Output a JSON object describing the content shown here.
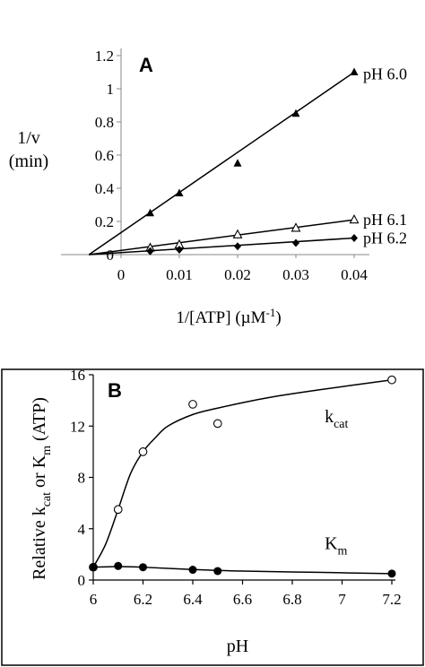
{
  "chart_data": [
    {
      "panel_label": "A",
      "type": "line",
      "xlabel_main": "1/[ATP] (µM",
      "xlabel_sup": "-1",
      "xlabel_end": ")",
      "ylabel_line1": "1/v",
      "ylabel_line2": "(min)",
      "xlim": [
        -0.0075,
        0.04
      ],
      "ylim": [
        0,
        1.2
      ],
      "xticks": [
        0,
        0.01,
        0.02,
        0.03,
        0.04
      ],
      "xtick_labels": [
        "0",
        "0.01",
        "0.02",
        "0.03",
        "0.04"
      ],
      "yticks": [
        0,
        0.2,
        0.4,
        0.6,
        0.8,
        1,
        1.2
      ],
      "ytick_labels": [
        "0",
        "0.2",
        "0.4",
        "0.6",
        "0.8",
        "1",
        "1.2"
      ],
      "series": [
        {
          "name": "pH 6.0",
          "marker": "filled-triangle",
          "points": [
            [
              0.005,
              0.25
            ],
            [
              0.01,
              0.37
            ],
            [
              0.02,
              0.55
            ],
            [
              0.03,
              0.85
            ],
            [
              0.04,
              1.1
            ]
          ],
          "fit": [
            [
              -0.0055,
              0
            ],
            [
              0.04,
              1.1
            ]
          ]
        },
        {
          "name": "pH 6.1",
          "marker": "open-triangle",
          "points": [
            [
              0.005,
              0.04
            ],
            [
              0.01,
              0.06
            ],
            [
              0.02,
              0.12
            ],
            [
              0.03,
              0.16
            ],
            [
              0.04,
              0.21
            ]
          ],
          "fit": [
            [
              -0.0055,
              0
            ],
            [
              0.04,
              0.21
            ]
          ]
        },
        {
          "name": "pH 6.2",
          "marker": "filled-diamond",
          "points": [
            [
              0.005,
              0.02
            ],
            [
              0.01,
              0.03
            ],
            [
              0.02,
              0.05
            ],
            [
              0.03,
              0.07
            ],
            [
              0.04,
              0.1
            ]
          ],
          "fit": [
            [
              -0.0055,
              0
            ],
            [
              0.04,
              0.1
            ]
          ]
        }
      ]
    },
    {
      "panel_label": "B",
      "type": "scatter",
      "xlabel": "pH",
      "ylabel": {
        "pre": "Relative k",
        "sub1": "cat",
        "mid": " or K",
        "sub2": "m",
        "post": " (ATP)"
      },
      "xlim": [
        6,
        7.2
      ],
      "ylim": [
        0,
        16
      ],
      "xticks": [
        6,
        6.2,
        6.4,
        6.6,
        6.8,
        7,
        7.2
      ],
      "xtick_labels": [
        "6",
        "6.2",
        "6.4",
        "6.6",
        "6.8",
        "7",
        "7.2"
      ],
      "yticks": [
        0,
        4,
        8,
        12,
        16
      ],
      "ytick_labels": [
        "0",
        "4",
        "8",
        "12",
        "16"
      ],
      "series": [
        {
          "name": "k",
          "name_sub": "cat",
          "marker": "open-circle",
          "points": [
            [
              6,
              1
            ],
            [
              6.1,
              5.5
            ],
            [
              6.2,
              10
            ],
            [
              6.4,
              13.7
            ],
            [
              6.5,
              12.2
            ],
            [
              7.2,
              15.6
            ]
          ],
          "curve": [
            [
              6,
              1
            ],
            [
              6.05,
              2.8
            ],
            [
              6.1,
              5.5
            ],
            [
              6.15,
              8.3
            ],
            [
              6.2,
              10
            ],
            [
              6.25,
              11.1
            ],
            [
              6.3,
              12
            ],
            [
              6.4,
              12.9
            ],
            [
              6.5,
              13.4
            ],
            [
              6.7,
              14.2
            ],
            [
              6.9,
              14.8
            ],
            [
              7.2,
              15.6
            ]
          ]
        },
        {
          "name": "K",
          "name_sub": "m",
          "marker": "filled-circle",
          "points": [
            [
              6,
              1
            ],
            [
              6.1,
              1.1
            ],
            [
              6.2,
              1
            ],
            [
              6.4,
              0.8
            ],
            [
              6.5,
              0.7
            ],
            [
              7.2,
              0.5
            ]
          ],
          "curve": [
            [
              6,
              1
            ],
            [
              6.1,
              1.05
            ],
            [
              6.2,
              1
            ],
            [
              6.4,
              0.82
            ],
            [
              6.6,
              0.7
            ],
            [
              6.9,
              0.6
            ],
            [
              7.2,
              0.5
            ]
          ]
        }
      ]
    }
  ]
}
